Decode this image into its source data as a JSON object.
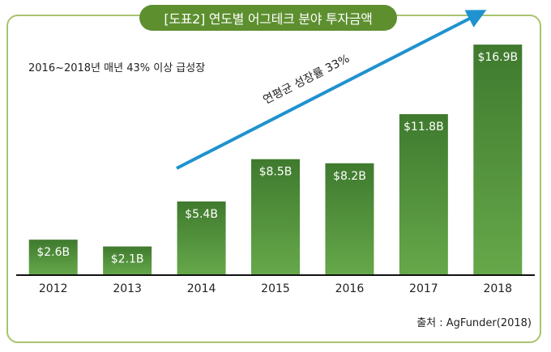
{
  "chart_data": {
    "type": "bar",
    "title": "[도표2] 연도별 어그테크 분야 투자금액",
    "subtitle": "2016~2018년 매년 43% 이상 급성장",
    "trend_annotation": "연평균 성장률 33%",
    "source": "출처 : AgFunder(2018)",
    "unit_prefix": "$",
    "unit_suffix": "B",
    "categories": [
      "2012",
      "2013",
      "2014",
      "2015",
      "2016",
      "2017",
      "2018"
    ],
    "values": [
      2.6,
      2.1,
      5.4,
      8.5,
      8.2,
      11.8,
      16.9
    ],
    "data_labels": [
      "$2.6B",
      "$2.1B",
      "$5.4B",
      "$8.5B",
      "$8.2B",
      "$11.8B",
      "$16.9B"
    ],
    "xlabel": "",
    "ylabel": "",
    "ylim": [
      0,
      17.5
    ],
    "grid": false,
    "colors": {
      "bar_top": "#3f7a2e",
      "bar_bottom": "#66a84a",
      "arrow": "#1f92cf",
      "accent": "#5d8f2f",
      "frame": "#a9c36f"
    }
  }
}
